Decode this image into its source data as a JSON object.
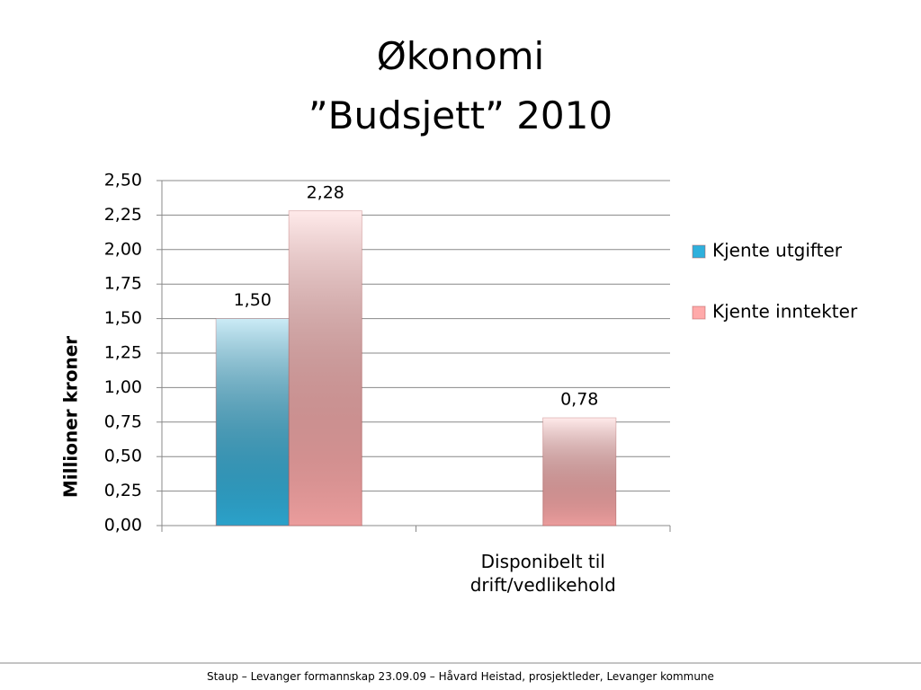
{
  "chart_data": {
    "type": "bar",
    "title": "Økonomi",
    "subtitle": "”Budsjett” 2010",
    "y_label": "Millioner kroner",
    "categories": [
      null,
      "Disponibelt til drift/vedlikehold"
    ],
    "series": [
      {
        "name": "Kjente utgifter",
        "color": "#2fb0dc",
        "values": [
          1.5,
          null
        ],
        "value_labels": [
          "1,50",
          null
        ]
      },
      {
        "name": "Kjente inntekter",
        "color": "#ffaaaa",
        "values": [
          2.28,
          0.78
        ],
        "value_labels": [
          "2,28",
          "0,78"
        ]
      }
    ],
    "ylim": [
      0,
      2.5
    ],
    "yticks": [
      {
        "value": 0,
        "label": "0,00"
      },
      {
        "value": 0.25,
        "label": "0,25"
      },
      {
        "value": 0.5,
        "label": "0,50"
      },
      {
        "value": 0.75,
        "label": "0,75"
      },
      {
        "value": 1,
        "label": "1,00"
      },
      {
        "value": 1.25,
        "label": "1,25"
      },
      {
        "value": 1.5,
        "label": "1,50"
      },
      {
        "value": 1.75,
        "label": "1,75"
      },
      {
        "value": 2,
        "label": "2,00"
      },
      {
        "value": 2.25,
        "label": "2,25"
      },
      {
        "value": 2.5,
        "label": "2,50"
      }
    ],
    "grid": true,
    "legend": "right"
  },
  "footer": "Staup – Levanger formannskap 23.09.09 – Håvard Heistad, prosjektleder, Levanger kommune"
}
